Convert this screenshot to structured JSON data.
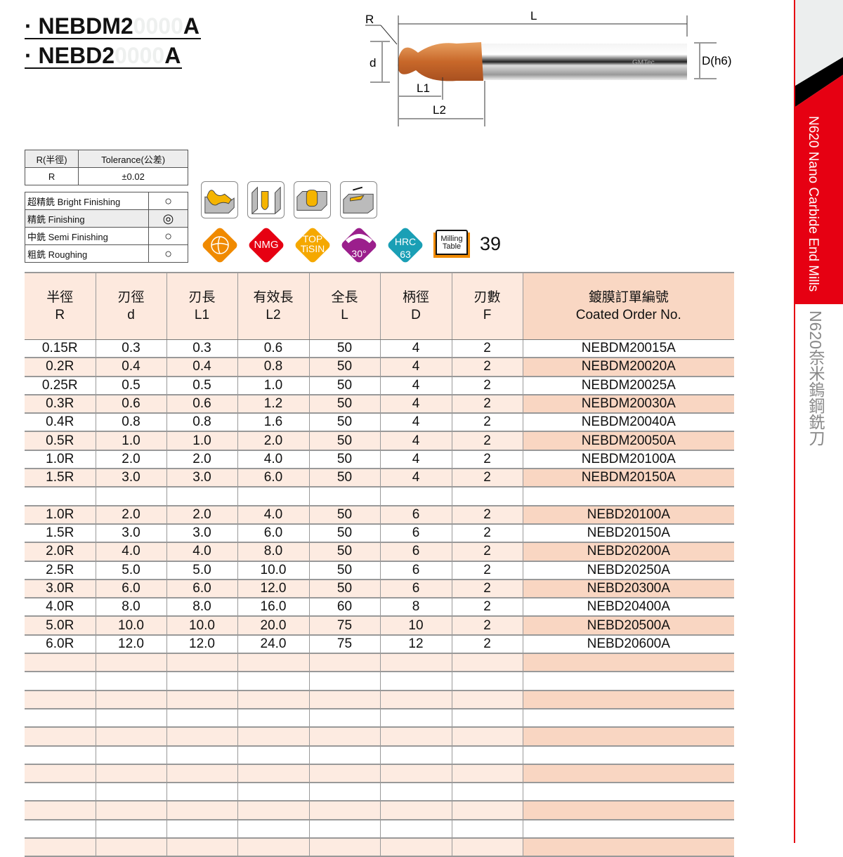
{
  "titles": [
    {
      "prefix": "· NEBDM2",
      "faded": "0000",
      "suffix": "A"
    },
    {
      "prefix": "· NEBD2",
      "faded": "0000",
      "suffix": "A"
    }
  ],
  "diagram": {
    "labels": {
      "R": "R",
      "L": "L",
      "d": "d",
      "L1": "L1",
      "L2": "L2",
      "D": "D(h6)"
    },
    "logo": "GMTec"
  },
  "tolerance": {
    "headers": [
      "R(半徑)",
      "Tolerance(公差)"
    ],
    "row": [
      "R",
      "±0.02"
    ]
  },
  "machining": [
    {
      "label": "超精銑 Bright Finishing",
      "mark": "○"
    },
    {
      "label": "精銑 Finishing",
      "mark": "◎"
    },
    {
      "label": "中銑 Semi Finishing",
      "mark": "○"
    },
    {
      "label": "粗銑 Roughing",
      "mark": "○"
    }
  ],
  "features": {
    "icons": [
      "contour-milling-icon",
      "slot-milling-icon",
      "helical-milling-icon",
      "side-milling-icon"
    ],
    "badges": [
      {
        "name": "flute-badge",
        "text": "",
        "color": "#f08a00"
      },
      {
        "name": "nmg-badge",
        "text": "NMG",
        "color": "#e60012"
      },
      {
        "name": "coating-badge",
        "text": "TOP\nTiSIN",
        "color": "#f5a800"
      },
      {
        "name": "helix-badge",
        "text": "30°",
        "color": "#9b1f8c"
      },
      {
        "name": "hrc-badge",
        "text": "HRC\n63",
        "color": "#1a9fb5"
      }
    ],
    "milling_table": "Milling\nTable",
    "page": "39"
  },
  "table": {
    "headers": [
      [
        "半徑",
        "R"
      ],
      [
        "刃徑",
        "d"
      ],
      [
        "刃長",
        "L1"
      ],
      [
        "有效長",
        "L2"
      ],
      [
        "全長",
        "L"
      ],
      [
        "柄徑",
        "D"
      ],
      [
        "刃數",
        "F"
      ],
      [
        "鍍膜訂單編號",
        "Coated Order No."
      ]
    ],
    "rows": [
      [
        "0.15R",
        "0.3",
        "0.3",
        "0.6",
        "50",
        "4",
        "2",
        "NEBDM20015A"
      ],
      [
        "0.2R",
        "0.4",
        "0.4",
        "0.8",
        "50",
        "4",
        "2",
        "NEBDM20020A"
      ],
      [
        "0.25R",
        "0.5",
        "0.5",
        "1.0",
        "50",
        "4",
        "2",
        "NEBDM20025A"
      ],
      [
        "0.3R",
        "0.6",
        "0.6",
        "1.2",
        "50",
        "4",
        "2",
        "NEBDM20030A"
      ],
      [
        "0.4R",
        "0.8",
        "0.8",
        "1.6",
        "50",
        "4",
        "2",
        "NEBDM20040A"
      ],
      [
        "0.5R",
        "1.0",
        "1.0",
        "2.0",
        "50",
        "4",
        "2",
        "NEBDM20050A"
      ],
      [
        "1.0R",
        "2.0",
        "2.0",
        "4.0",
        "50",
        "4",
        "2",
        "NEBDM20100A"
      ],
      [
        "1.5R",
        "3.0",
        "3.0",
        "6.0",
        "50",
        "4",
        "2",
        "NEBDM20150A"
      ],
      [
        "",
        "",
        "",
        "",
        "",
        "",
        "",
        ""
      ],
      [
        "1.0R",
        "2.0",
        "2.0",
        "4.0",
        "50",
        "6",
        "2",
        "NEBD20100A"
      ],
      [
        "1.5R",
        "3.0",
        "3.0",
        "6.0",
        "50",
        "6",
        "2",
        "NEBD20150A"
      ],
      [
        "2.0R",
        "4.0",
        "4.0",
        "8.0",
        "50",
        "6",
        "2",
        "NEBD20200A"
      ],
      [
        "2.5R",
        "5.0",
        "5.0",
        "10.0",
        "50",
        "6",
        "2",
        "NEBD20250A"
      ],
      [
        "3.0R",
        "6.0",
        "6.0",
        "12.0",
        "50",
        "6",
        "2",
        "NEBD20300A"
      ],
      [
        "4.0R",
        "8.0",
        "8.0",
        "16.0",
        "60",
        "8",
        "2",
        "NEBD20400A"
      ],
      [
        "5.0R",
        "10.0",
        "10.0",
        "20.0",
        "75",
        "10",
        "2",
        "NEBD20500A"
      ],
      [
        "6.0R",
        "12.0",
        "12.0",
        "24.0",
        "75",
        "12",
        "2",
        "NEBD20600A"
      ]
    ]
  },
  "sidebar": {
    "english": "N620 Nano Carbide End Mills",
    "chinese": "N620奈米鎢鋼銑刀",
    "accent": "#e60012"
  }
}
